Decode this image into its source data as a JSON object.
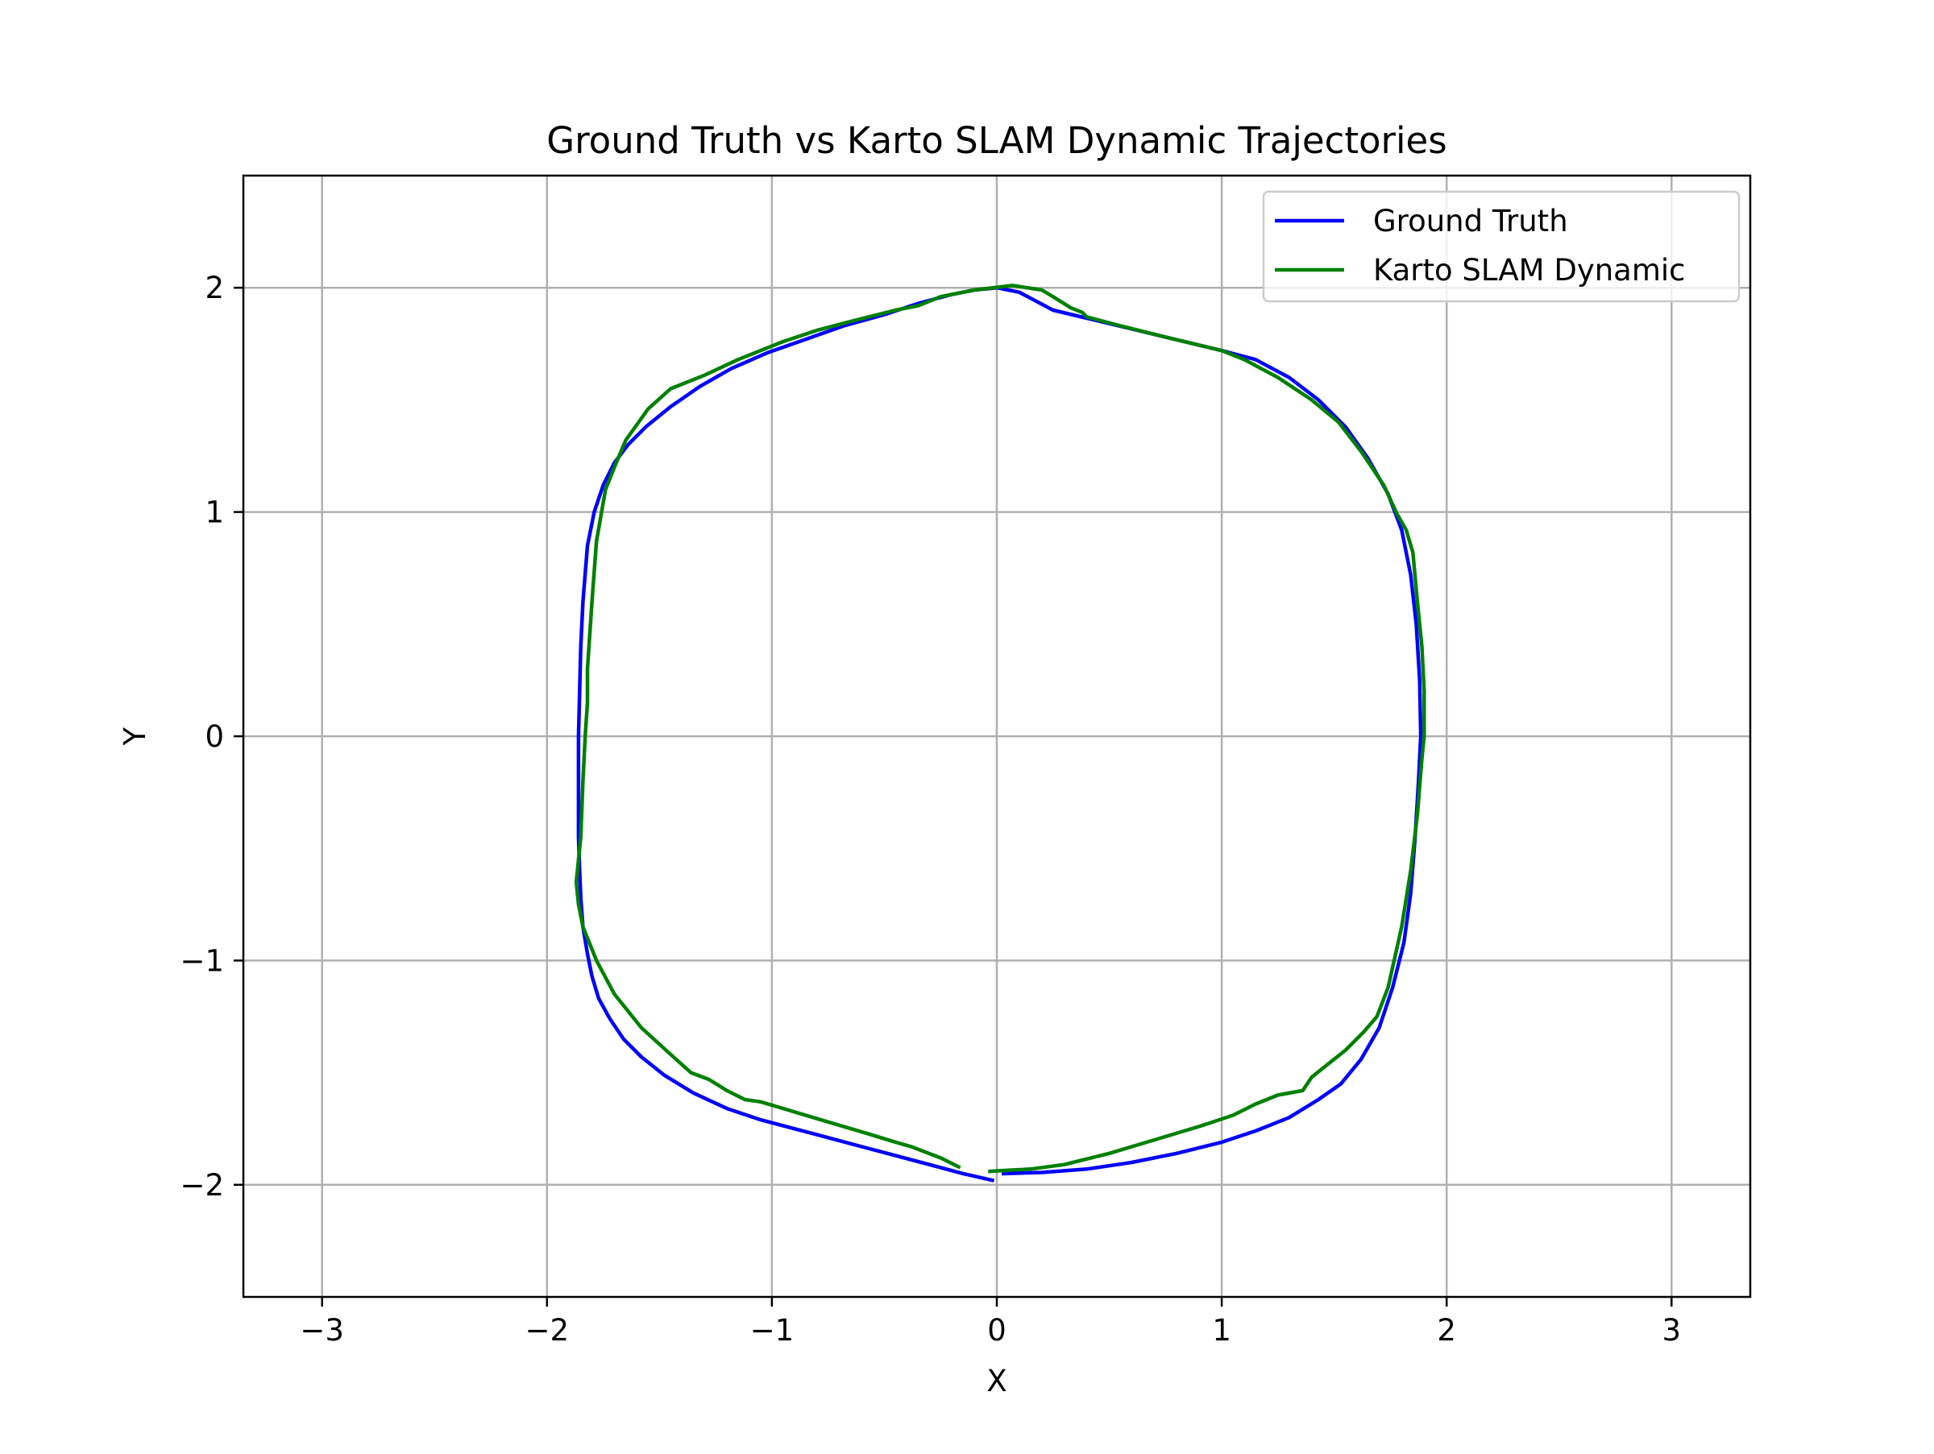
{
  "chart_data": {
    "type": "line",
    "title": "Ground Truth vs Karto SLAM Dynamic Trajectories",
    "xlabel": "X",
    "ylabel": "Y",
    "xlim": [
      -3.35,
      3.35
    ],
    "ylim": [
      -2.5,
      2.5
    ],
    "xticks": [
      -3,
      -2,
      -1,
      0,
      1,
      2,
      3
    ],
    "xtick_labels": [
      "−3",
      "−2",
      "−1",
      "0",
      "1",
      "2",
      "3"
    ],
    "yticks": [
      -2,
      -1,
      0,
      1,
      2
    ],
    "ytick_labels": [
      "−2",
      "−1",
      "0",
      "1",
      "2"
    ],
    "grid": true,
    "legend_position": "upper right",
    "series": [
      {
        "name": "Ground Truth",
        "color": "#0000ff",
        "x": [
          -0.02,
          -0.15,
          -0.3,
          -0.45,
          -0.6,
          -0.75,
          -0.9,
          -1.05,
          -1.2,
          -1.35,
          -1.48,
          -1.58,
          -1.66,
          -1.72,
          -1.77,
          -1.8,
          -1.82,
          -1.84,
          -1.85,
          -1.855,
          -1.86,
          -1.86,
          -1.86,
          -1.855,
          -1.85,
          -1.84,
          -1.82,
          -1.79,
          -1.75,
          -1.7,
          -1.64,
          -1.56,
          -1.45,
          -1.32,
          -1.18,
          -1.02,
          -0.85,
          -0.68,
          -0.5,
          -0.35,
          -0.2,
          -0.1,
          0.0,
          0.1,
          0.25,
          0.5,
          0.75,
          1.0,
          1.15,
          1.3,
          1.43,
          1.55,
          1.65,
          1.74,
          1.8,
          1.84,
          1.865,
          1.88,
          1.885,
          1.875,
          1.86,
          1.84,
          1.81,
          1.76,
          1.7,
          1.62,
          1.53,
          1.43,
          1.3,
          1.15,
          1.0,
          0.8,
          0.6,
          0.4,
          0.2,
          0.03
        ],
        "y": [
          -1.98,
          -1.95,
          -1.91,
          -1.87,
          -1.83,
          -1.79,
          -1.75,
          -1.71,
          -1.66,
          -1.59,
          -1.51,
          -1.43,
          -1.35,
          -1.26,
          -1.17,
          -1.07,
          -0.97,
          -0.85,
          -0.72,
          -0.6,
          -0.45,
          -0.25,
          0.0,
          0.2,
          0.4,
          0.6,
          0.85,
          1.0,
          1.12,
          1.22,
          1.3,
          1.38,
          1.47,
          1.56,
          1.64,
          1.71,
          1.77,
          1.83,
          1.88,
          1.93,
          1.97,
          1.99,
          2.0,
          1.98,
          1.9,
          1.84,
          1.78,
          1.72,
          1.68,
          1.6,
          1.5,
          1.38,
          1.24,
          1.08,
          0.92,
          0.72,
          0.5,
          0.25,
          0.0,
          -0.2,
          -0.45,
          -0.7,
          -0.92,
          -1.12,
          -1.3,
          -1.44,
          -1.55,
          -1.62,
          -1.7,
          -1.76,
          -1.81,
          -1.86,
          -1.9,
          -1.93,
          -1.945,
          -1.95
        ]
      },
      {
        "name": "Karto SLAM Dynamic",
        "color": "#008000",
        "x": [
          -0.17,
          -0.25,
          -0.38,
          -0.45,
          -0.58,
          -0.75,
          -0.95,
          -1.05,
          -1.12,
          -1.2,
          -1.28,
          -1.36,
          -1.46,
          -1.58,
          -1.7,
          -1.78,
          -1.84,
          -1.86,
          -1.87,
          -1.86,
          -1.85,
          -1.84,
          -1.83,
          -1.82,
          -1.82,
          -1.81,
          -1.8,
          -1.78,
          -1.74,
          -1.7,
          -1.65,
          -1.55,
          -1.45,
          -1.3,
          -1.15,
          -0.95,
          -0.8,
          -0.65,
          -0.45,
          -0.35,
          -0.25,
          -0.1,
          0.07,
          0.2,
          0.25,
          0.33,
          0.38,
          0.4,
          0.55,
          0.75,
          1.0,
          1.1,
          1.25,
          1.4,
          1.52,
          1.62,
          1.72,
          1.78,
          1.82,
          1.85,
          1.87,
          1.89,
          1.9,
          1.9,
          1.89,
          1.87,
          1.84,
          1.8,
          1.74,
          1.69,
          1.63,
          1.55,
          1.45,
          1.4,
          1.36,
          1.25,
          1.15,
          1.05,
          0.9,
          0.7,
          0.5,
          0.3,
          0.15,
          0.05,
          -0.03
        ],
        "y": [
          -1.92,
          -1.88,
          -1.83,
          -1.81,
          -1.77,
          -1.72,
          -1.66,
          -1.63,
          -1.62,
          -1.58,
          -1.53,
          -1.5,
          -1.41,
          -1.3,
          -1.15,
          -1.0,
          -0.85,
          -0.75,
          -0.65,
          -0.55,
          -0.45,
          -0.2,
          0.0,
          0.15,
          0.3,
          0.45,
          0.6,
          0.87,
          1.1,
          1.2,
          1.32,
          1.46,
          1.55,
          1.61,
          1.68,
          1.76,
          1.81,
          1.85,
          1.9,
          1.92,
          1.96,
          1.99,
          2.01,
          1.99,
          1.96,
          1.91,
          1.89,
          1.87,
          1.83,
          1.78,
          1.72,
          1.68,
          1.6,
          1.5,
          1.4,
          1.27,
          1.12,
          0.99,
          0.92,
          0.82,
          0.6,
          0.4,
          0.2,
          0.0,
          -0.1,
          -0.35,
          -0.6,
          -0.85,
          -1.12,
          -1.25,
          -1.32,
          -1.4,
          -1.48,
          -1.52,
          -1.58,
          -1.6,
          -1.64,
          -1.69,
          -1.74,
          -1.8,
          -1.86,
          -1.91,
          -1.93,
          -1.935,
          -1.94
        ]
      }
    ]
  }
}
